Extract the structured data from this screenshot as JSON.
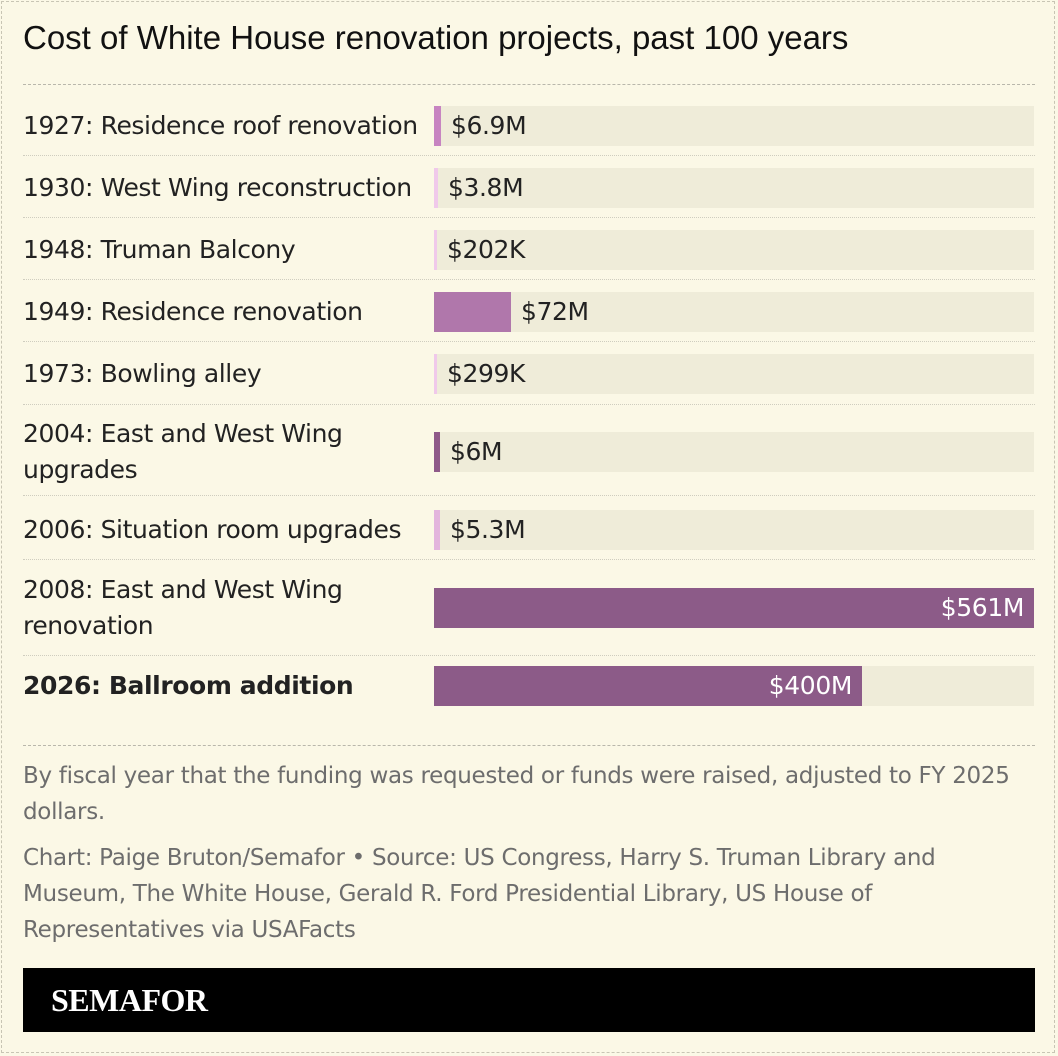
{
  "chart_data": {
    "type": "bar",
    "orientation": "horizontal",
    "title": "Cost of White House renovation projects, past 100 years",
    "categories": [
      "1927: Residence roof renovation",
      "1930: West Wing reconstruction",
      "1948: Truman Balcony",
      "1949: Residence renovation",
      "1973: Bowling alley",
      "2004: East and West Wing upgrades",
      "2006: Situation room upgrades",
      "2008: East and West Wing renovation",
      "2026: Ballroom addition"
    ],
    "values": [
      6.9,
      3.8,
      0.202,
      72,
      0.299,
      6,
      5.3,
      561,
      400
    ],
    "value_labels": [
      "$6.9M",
      "$3.8M",
      "$202K",
      "$72M",
      "$299K",
      "$6M",
      "$5.3M",
      "$561M",
      "$400M"
    ],
    "unit": "USD millions (FY 2025 dollars)",
    "xlim": [
      0,
      561
    ],
    "highlighted": "2026: Ballroom addition",
    "bar_colors": [
      "#c784c1",
      "#f0c9ea",
      "#f0c9ea",
      "#b077ab",
      "#f0c9ea",
      "#8f5a89",
      "#e3b5dd",
      "#8c5b88",
      "#8c5b88"
    ],
    "grid": false,
    "legend": "none"
  },
  "notes": {
    "methodology": "By fiscal year that the funding was requested or funds were raised, adjusted to FY 2025 dollars.",
    "credit": "Chart: Paige Bruton/Semafor • Source: US Congress, Harry S. Truman Library and Museum, The White House, Gerald R. Ford Presidential Library, US House of Representatives via USAFacts"
  },
  "brand": {
    "name": "SEMAFOR"
  },
  "colors": {
    "background": "#fbf8e6",
    "track": "#efecd9",
    "accent": "#8c5b88"
  }
}
